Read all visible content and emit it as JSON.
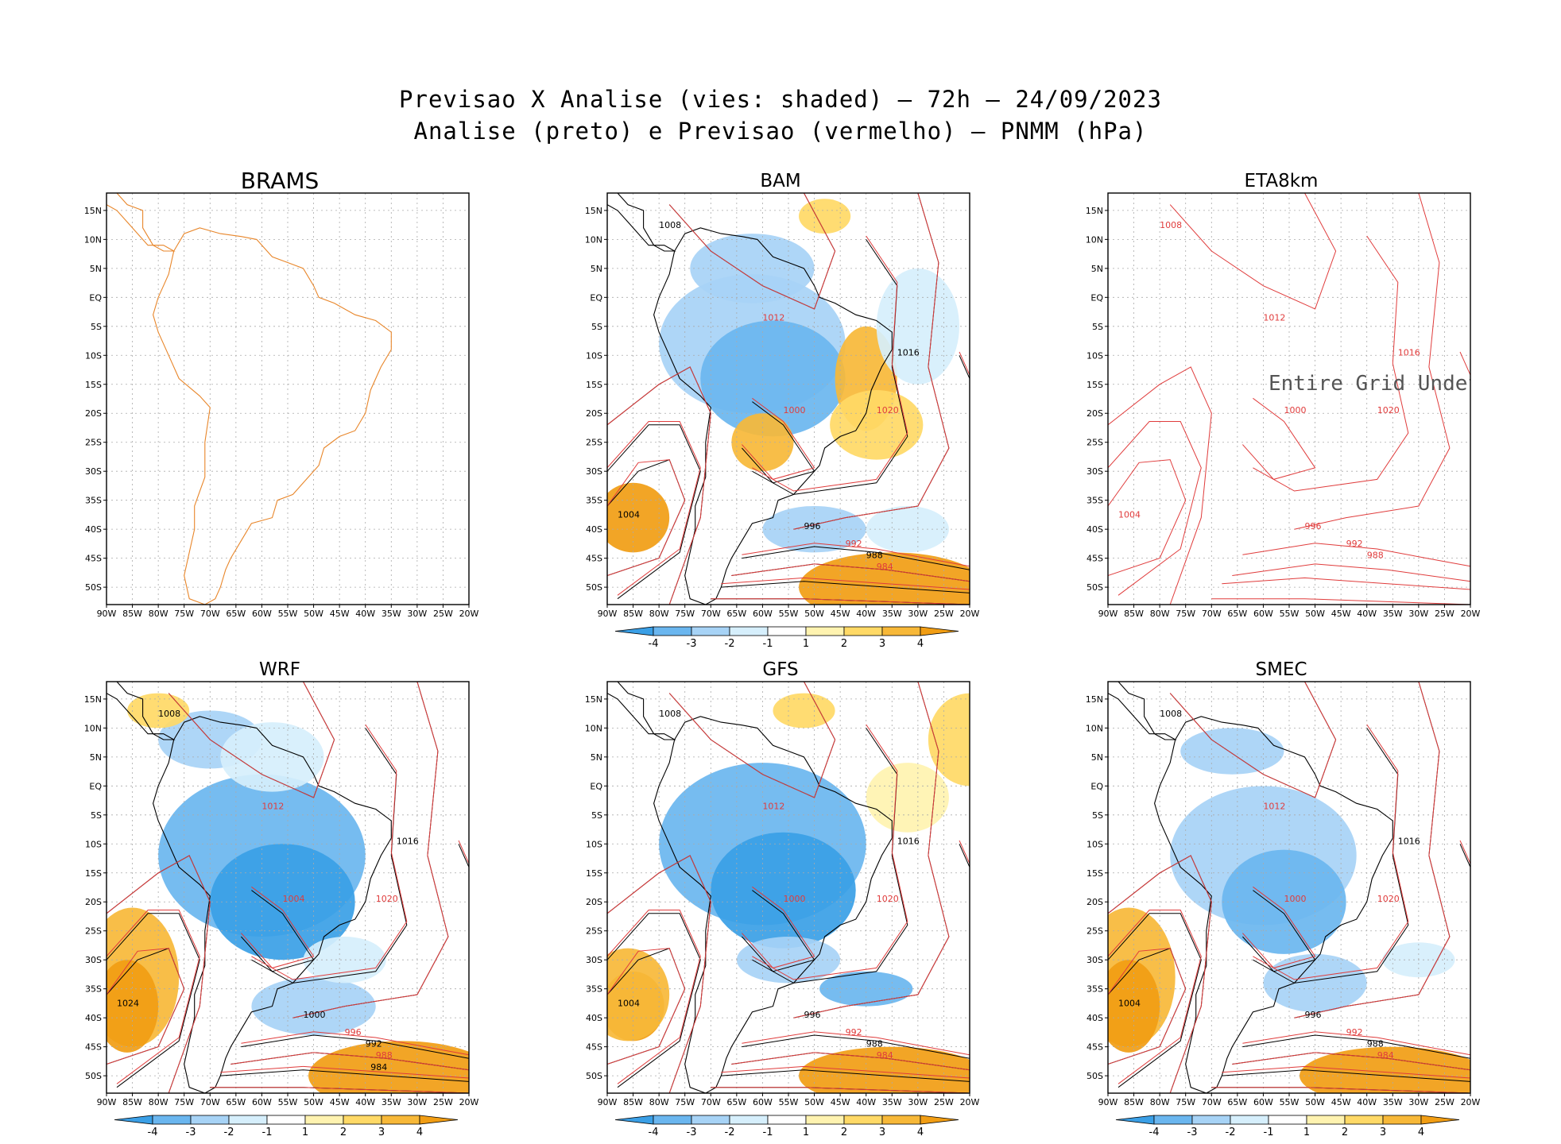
{
  "title_line1": "Previsao X Analise (vies: shaded) – 72h – 24/09/2023",
  "title_line2": "Analise (preto) e Previsao (vermelho) – PNMM (hPa)",
  "lat_labels": [
    "15N",
    "10N",
    "5N",
    "EQ",
    "5S",
    "10S",
    "15S",
    "20S",
    "25S",
    "30S",
    "35S",
    "40S",
    "45S",
    "50S"
  ],
  "lon_labels": [
    "90W",
    "85W",
    "80W",
    "75W",
    "70W",
    "65W",
    "60W",
    "55W",
    "50W",
    "45W",
    "40W",
    "35W",
    "30W",
    "25W",
    "20W"
  ],
  "colorbar": {
    "labels": [
      "-4",
      "-3",
      "-2",
      "-1",
      "1",
      "2",
      "3",
      "4"
    ],
    "colors": [
      "#3a9fe6",
      "#6ab6ef",
      "#a7d3f6",
      "#d6effc",
      "#ffffff",
      "#fff3b0",
      "#ffd966",
      "#f7b838",
      "#f19d13"
    ]
  },
  "colors": {
    "analysis": "#000000",
    "forecast": "#e03c3c",
    "coastline_brams": "#e8862a",
    "bias_negative": "#6ab6ef",
    "bias_positive": "#f7b838"
  },
  "panels": [
    {
      "id": "brams",
      "name": "BRAMS",
      "has_colorbar": false,
      "undefined_text": "",
      "isobar_labels": []
    },
    {
      "id": "bam",
      "name": "BAM",
      "has_colorbar": true,
      "undefined_text": "",
      "isobar_labels": [
        "1008",
        "1012",
        "1016",
        "1020",
        "1004",
        "1000",
        "996",
        "992",
        "988",
        "984"
      ]
    },
    {
      "id": "eta8km",
      "name": "ETA8km",
      "has_colorbar": false,
      "undefined_text": "Entire Grid Undefine",
      "isobar_labels": [
        "1008",
        "1012",
        "1016",
        "1020",
        "1004",
        "1000",
        "996",
        "992",
        "988"
      ]
    },
    {
      "id": "wrf",
      "name": "WRF",
      "has_colorbar": true,
      "undefined_text": "",
      "isobar_labels": [
        "1008",
        "1012",
        "1016",
        "1020",
        "1024",
        "1004",
        "1000",
        "996",
        "992",
        "988",
        "984"
      ]
    },
    {
      "id": "gfs",
      "name": "GFS",
      "has_colorbar": true,
      "undefined_text": "",
      "isobar_labels": [
        "1008",
        "1012",
        "1016",
        "1020",
        "1004",
        "1000",
        "996",
        "992",
        "988",
        "984"
      ]
    },
    {
      "id": "smec",
      "name": "SMEC",
      "has_colorbar": true,
      "undefined_text": "",
      "isobar_labels": [
        "1008",
        "1012",
        "1016",
        "1020",
        "1004",
        "1000",
        "996",
        "992",
        "988",
        "984"
      ]
    }
  ]
}
